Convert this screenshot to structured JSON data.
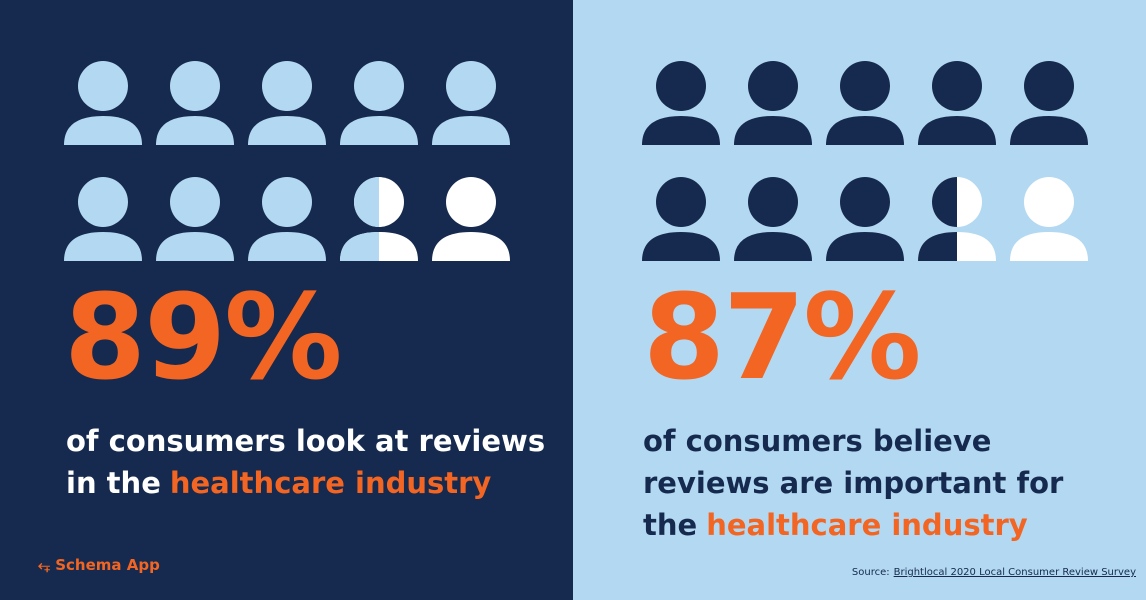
{
  "left": {
    "stat": "89%",
    "caption": [
      {
        "text": "of consumers look at reviews"
      },
      {
        "text": "in the",
        "highlight": "healthcare industry"
      }
    ]
  },
  "right": {
    "stat": "87%",
    "caption": [
      {
        "text": "of consumers believe"
      },
      {
        "text": "reviews are important for"
      },
      {
        "text": "the",
        "highlight": "healthcare industry"
      }
    ]
  },
  "logo": "Schema App",
  "source": {
    "label": "Source:",
    "link": "Brightlocal 2020 Local Consumer Review Survey"
  }
}
